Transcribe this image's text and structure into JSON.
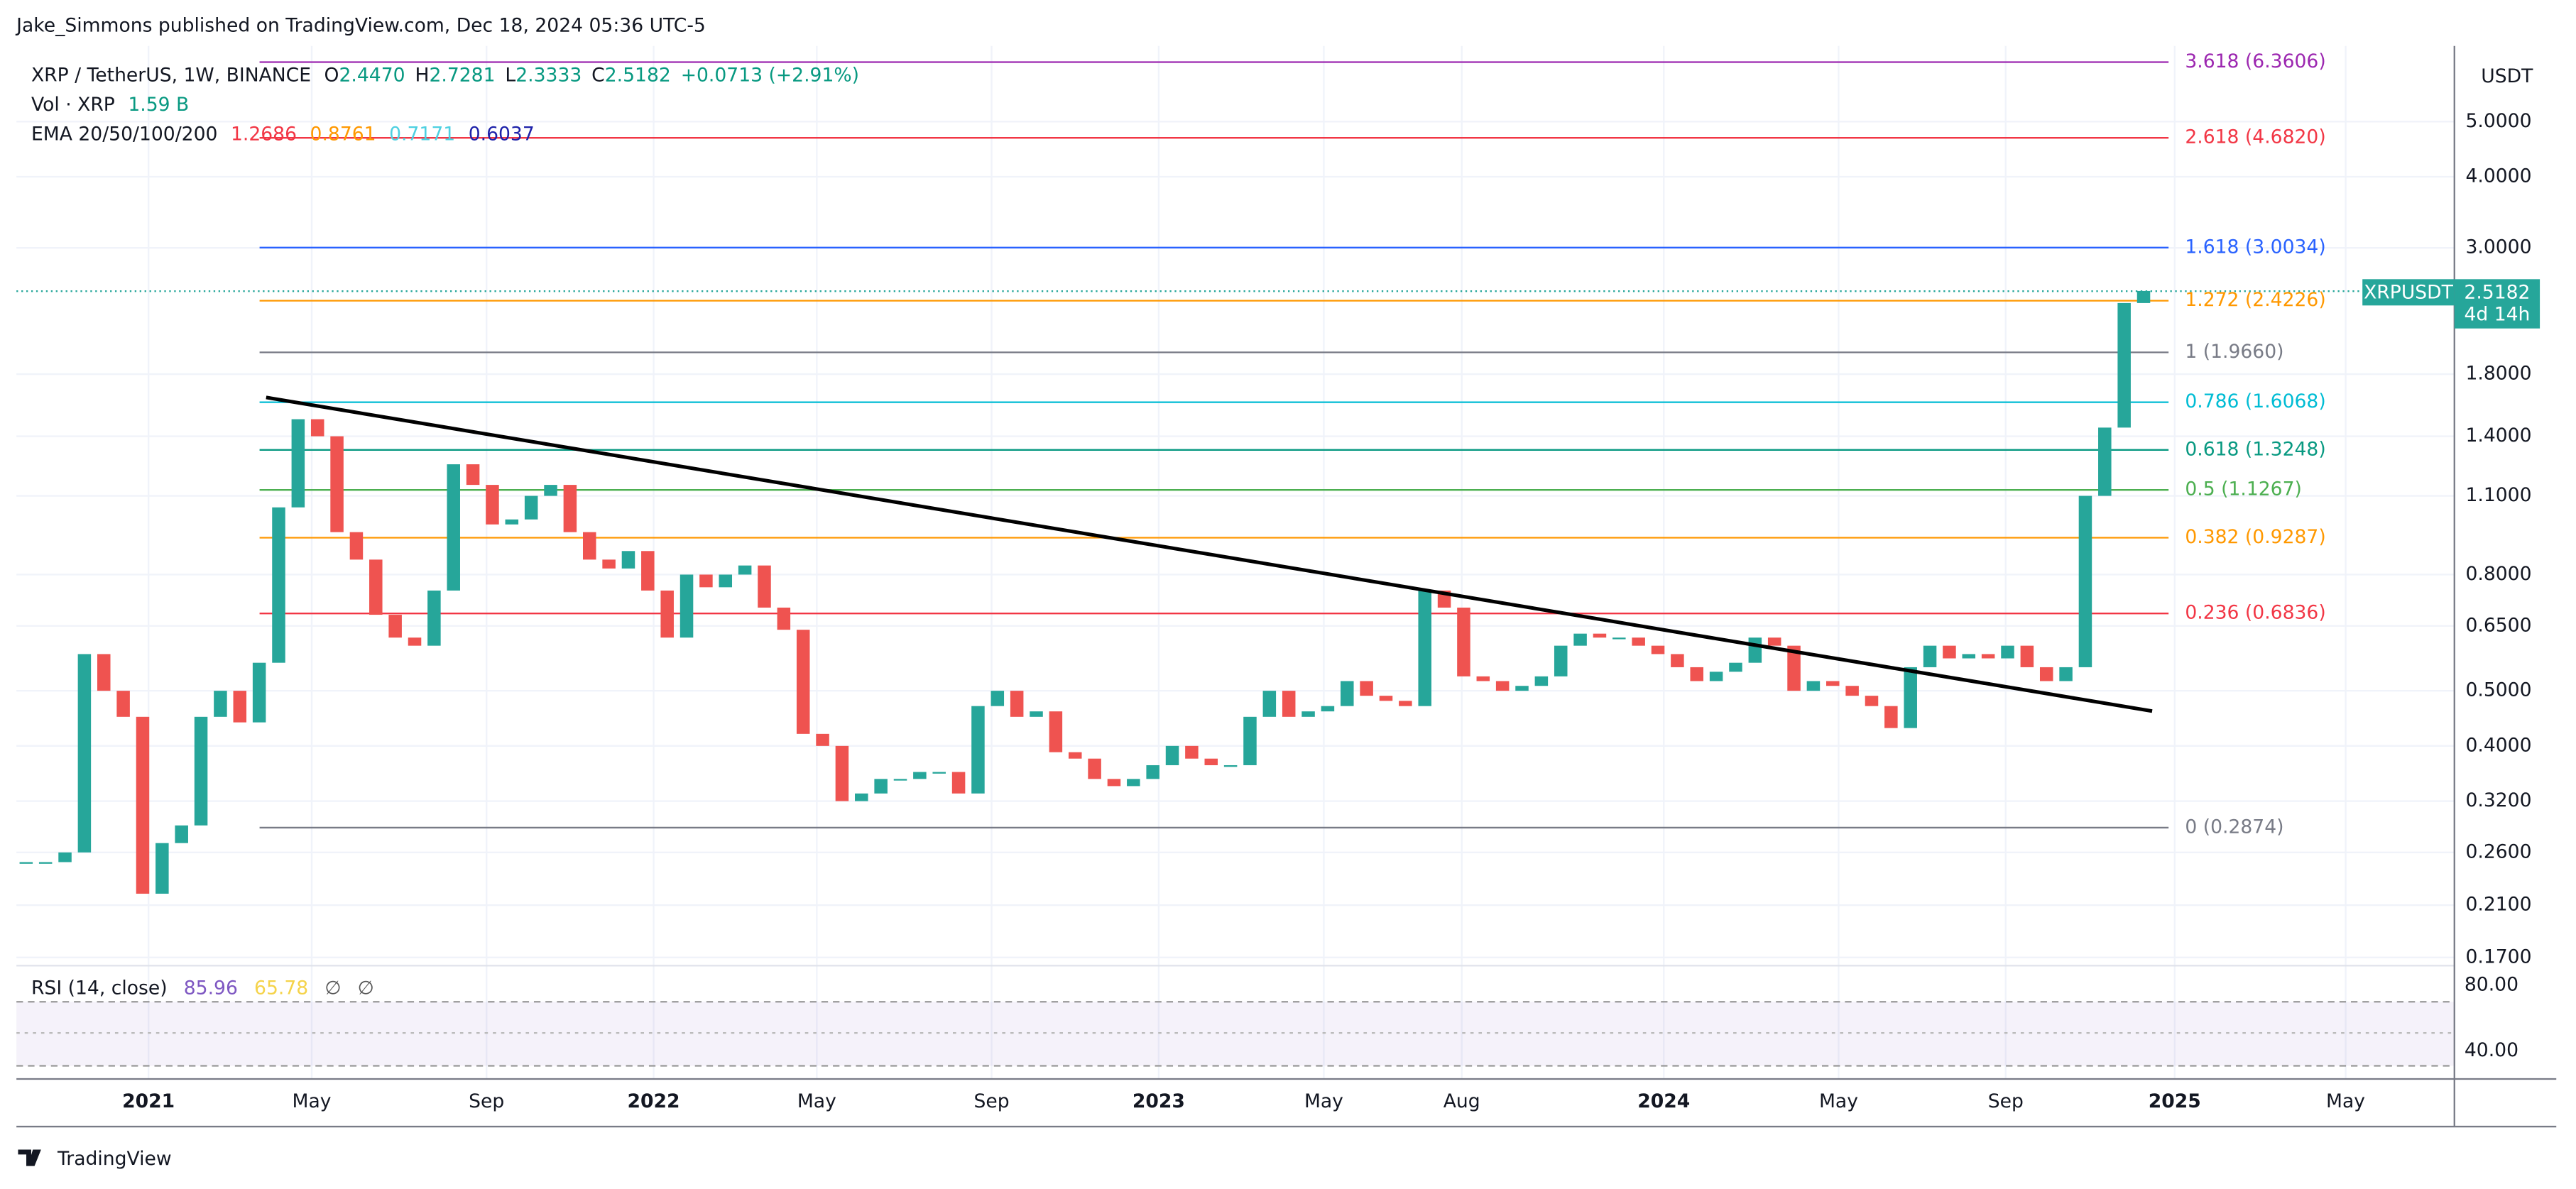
{
  "header": {
    "publisher": "Jake_Simmons published on TradingView.com, Dec 18, 2024 05:36 UTC-5",
    "brand": "TradingView"
  },
  "legend": {
    "symbol": "XRP / TetherUS, 1W, BINANCE",
    "ohlc": [
      {
        "key": "O",
        "value": "2.4470"
      },
      {
        "key": "H",
        "value": "2.7281"
      },
      {
        "key": "L",
        "value": "2.3333"
      },
      {
        "key": "C",
        "value": "2.5182"
      }
    ],
    "change": "+0.0713 (+2.91%)",
    "volume_label": "Vol · XRP",
    "volume_value": "1.59 B",
    "ema_label": "EMA 20/50/100/200",
    "ema_values": [
      {
        "value": "1.2686",
        "color": "#f23645"
      },
      {
        "value": "0.8761",
        "color": "#ff9800"
      },
      {
        "value": "0.7171",
        "color": "#4dd0e1"
      },
      {
        "value": "0.6037",
        "color": "#1e22aa"
      }
    ],
    "rsi_label": "RSI (14, close)",
    "rsi_values": [
      {
        "value": "85.96",
        "color": "#7e57c2"
      },
      {
        "value": "65.78",
        "color": "#f5d34a"
      },
      {
        "value": "∅",
        "color": "#555"
      },
      {
        "value": "∅",
        "color": "#555"
      }
    ]
  },
  "currency": "USDT",
  "price_label": {
    "symbol": "XRPUSDT",
    "value": 2.5182,
    "countdown": "4d 14h"
  },
  "chart_data": {
    "type": "candlestick",
    "log_scale": true,
    "grid": true,
    "ylim": [
      0.17,
      6.7
    ],
    "yticks": [
      {
        "value": 5,
        "label": "5.0000"
      },
      {
        "value": 4,
        "label": "4.0000"
      },
      {
        "value": 3,
        "label": "3.0000"
      },
      {
        "value": 1.8,
        "label": "1.8000"
      },
      {
        "value": 1.4,
        "label": "1.4000"
      },
      {
        "value": 1.1,
        "label": "1.1000"
      },
      {
        "value": 0.8,
        "label": "0.8000"
      },
      {
        "value": 0.65,
        "label": "0.6500"
      },
      {
        "value": 0.5,
        "label": "0.5000"
      },
      {
        "value": 0.4,
        "label": "0.4000"
      },
      {
        "value": 0.32,
        "label": "0.3200"
      },
      {
        "value": 0.26,
        "label": "0.2600"
      },
      {
        "value": 0.21,
        "label": "0.2100"
      },
      {
        "value": 0.17,
        "label": "0.1700"
      }
    ],
    "xlim": [
      -0.5,
      125
    ],
    "xticks": [
      {
        "value": 6.3,
        "label": "2021"
      },
      {
        "value": 14.7,
        "label": "May"
      },
      {
        "value": 23.7,
        "label": "Sep"
      },
      {
        "value": 32.3,
        "label": "2022"
      },
      {
        "value": 40.7,
        "label": "May"
      },
      {
        "value": 49.7,
        "label": "Sep"
      },
      {
        "value": 58.3,
        "label": "2023"
      },
      {
        "value": 66.8,
        "label": "May"
      },
      {
        "value": 73.9,
        "label": "Aug"
      },
      {
        "value": 84.3,
        "label": "2024"
      },
      {
        "value": 93.3,
        "label": "May"
      },
      {
        "value": 101.9,
        "label": "Sep"
      },
      {
        "value": 110.6,
        "label": "2025"
      },
      {
        "value": 119.4,
        "label": "May"
      }
    ],
    "up_color": "#26a69a",
    "down_color": "#ef5350",
    "closes": [
      0.25,
      0.25,
      0.26,
      0.58,
      0.5,
      0.45,
      0.22,
      0.27,
      0.29,
      0.45,
      0.5,
      0.44,
      0.56,
      1.05,
      1.5,
      1.4,
      0.95,
      0.85,
      0.68,
      0.62,
      0.6,
      0.75,
      1.25,
      1.15,
      0.98,
      1.0,
      1.1,
      1.15,
      0.95,
      0.85,
      0.82,
      0.88,
      0.75,
      0.62,
      0.8,
      0.76,
      0.8,
      0.83,
      0.7,
      0.64,
      0.42,
      0.4,
      0.32,
      0.33,
      0.35,
      0.35,
      0.36,
      0.36,
      0.33,
      0.47,
      0.5,
      0.45,
      0.46,
      0.39,
      0.38,
      0.35,
      0.34,
      0.35,
      0.37,
      0.4,
      0.38,
      0.37,
      0.37,
      0.45,
      0.5,
      0.45,
      0.46,
      0.47,
      0.52,
      0.49,
      0.48,
      0.47,
      0.75,
      0.7,
      0.53,
      0.52,
      0.5,
      0.51,
      0.53,
      0.6,
      0.63,
      0.62,
      0.62,
      0.6,
      0.58,
      0.55,
      0.52,
      0.54,
      0.56,
      0.62,
      0.6,
      0.5,
      0.52,
      0.51,
      0.49,
      0.47,
      0.43,
      0.55,
      0.6,
      0.57,
      0.58,
      0.57,
      0.6,
      0.55,
      0.52,
      0.55,
      1.1,
      1.45,
      2.4,
      2.52
    ],
    "fib_levels": [
      {
        "label": "3.618 (6.3606)",
        "value": 6.3606,
        "color": "#9c27b0"
      },
      {
        "label": "2.618 (4.6820)",
        "value": 4.682,
        "color": "#f23645"
      },
      {
        "label": "1.618 (3.0034)",
        "value": 3.0034,
        "color": "#2962ff"
      },
      {
        "label": "1.272 (2.4226)",
        "value": 2.4226,
        "color": "#ff9800"
      },
      {
        "label": "1 (1.9660)",
        "value": 1.966,
        "color": "#787b86"
      },
      {
        "label": "0.786 (1.6068)",
        "value": 1.6068,
        "color": "#00bcd4"
      },
      {
        "label": "0.618 (1.3248)",
        "value": 1.3248,
        "color": "#089981"
      },
      {
        "label": "0.5 (1.1267)",
        "value": 1.1267,
        "color": "#4caf50"
      },
      {
        "label": "0.382 (0.9287)",
        "value": 0.9287,
        "color": "#ff9800"
      },
      {
        "label": "0.236 (0.6836)",
        "value": 0.6836,
        "color": "#f23645"
      },
      {
        "label": "0 (0.2874)",
        "value": 0.2874,
        "color": "#787b86"
      }
    ],
    "rsi_ylim": [
      25,
      90
    ],
    "rsi_yticks": [
      {
        "value": 80,
        "label": "80.00"
      },
      {
        "value": 40,
        "label": "40.00"
      }
    ]
  }
}
